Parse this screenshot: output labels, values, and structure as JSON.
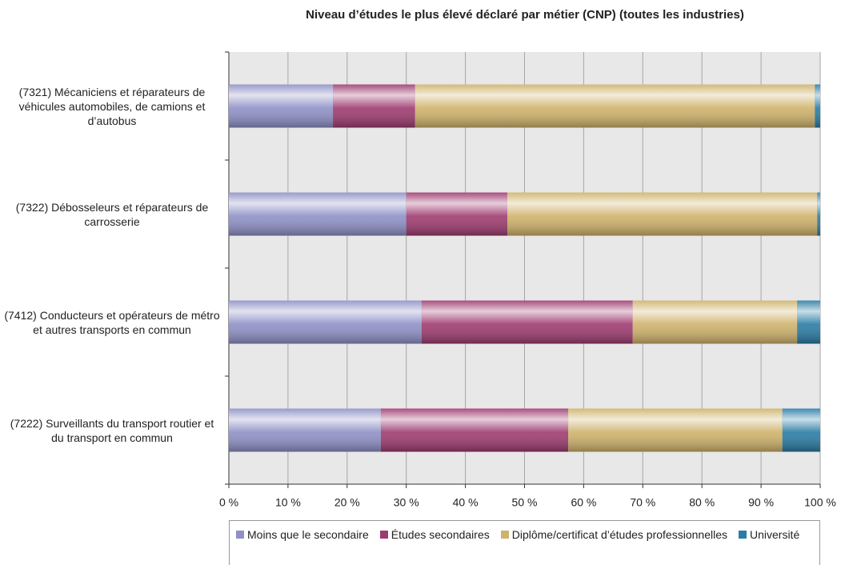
{
  "chart_data": {
    "type": "stacked_bar_horizontal",
    "title": "Niveau d’études le plus élevé déclaré par métier (CNP) (toutes les industries)",
    "categories": [
      "(7321) Mécaniciens et réparateurs de véhicules automobiles, de camions et d’autobus",
      "(7322) Débosseleurs et réparateurs de carrosserie",
      "(7412) Conducteurs et opérateurs de métro et autres transports en commun",
      "(7222) Surveillants du transport routier et du transport en commun"
    ],
    "series": [
      {
        "name": "Moins que le secondaire",
        "color": "#8e90c6",
        "values": [
          17.6,
          30.0,
          32.6,
          25.7
        ]
      },
      {
        "name": "Études secondaires",
        "color": "#9e3b70",
        "values": [
          13.9,
          17.1,
          35.7,
          31.7
        ]
      },
      {
        "name": "Diplôme/certificat d’études professionnelles",
        "color": "#cfb26b",
        "values": [
          67.6,
          52.4,
          27.8,
          36.2
        ]
      },
      {
        "name": "Université",
        "color": "#2a7ca5",
        "values": [
          0.9,
          0.5,
          3.9,
          6.4
        ]
      }
    ],
    "xlim": [
      0,
      100
    ],
    "xticks": [
      {
        "value": 0,
        "label": "0 %"
      },
      {
        "value": 10,
        "label": "10 %"
      },
      {
        "value": 20,
        "label": "20 %"
      },
      {
        "value": 30,
        "label": "30 %"
      },
      {
        "value": 40,
        "label": "40 %"
      },
      {
        "value": 50,
        "label": "50 %"
      },
      {
        "value": 60,
        "label": "60 %"
      },
      {
        "value": 70,
        "label": "70 %"
      },
      {
        "value": 80,
        "label": "80 %"
      },
      {
        "value": 90,
        "label": "90 %"
      },
      {
        "value": 100,
        "label": "100 %"
      }
    ],
    "grid": true,
    "legend": "bottom"
  }
}
